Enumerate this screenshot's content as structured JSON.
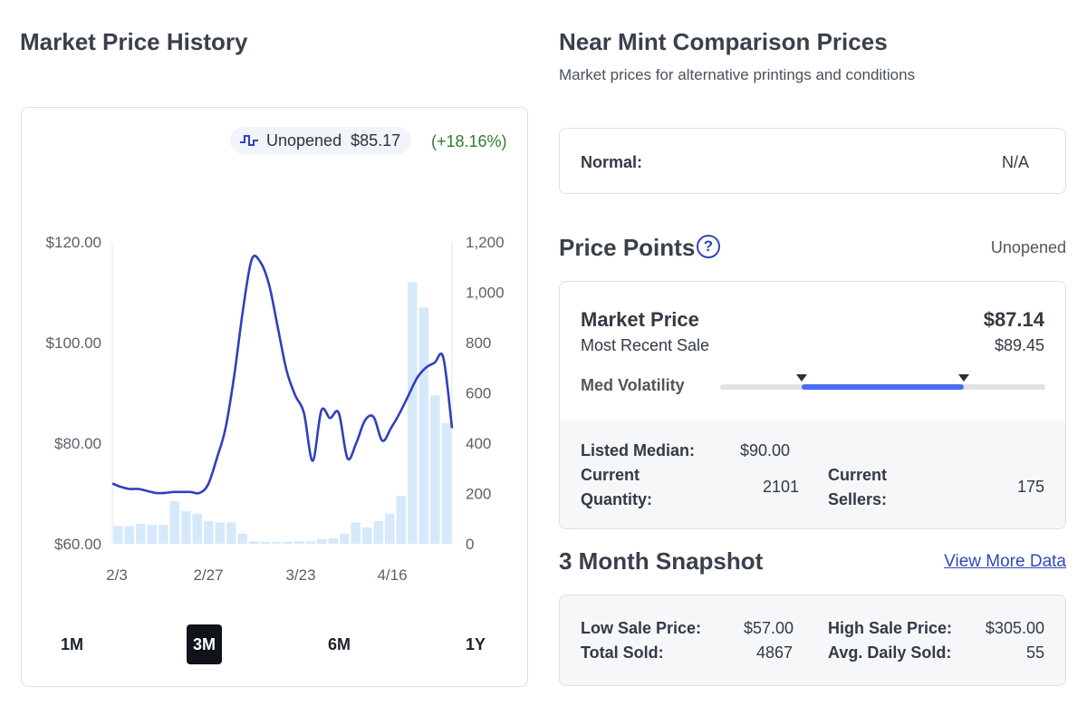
{
  "left_title": "Market Price History",
  "legend": {
    "label": "Unopened",
    "price": "$85.17",
    "change": "(+18.16%)",
    "line_color": "#2f3fbf",
    "bar_color": "#d6e9fb"
  },
  "ranges": [
    "1M",
    "3M",
    "6M",
    "1Y"
  ],
  "active_range": "3M",
  "chart_data": {
    "type": "line",
    "title": "",
    "x_tick_labels": [
      "2/3",
      "2/27",
      "3/23",
      "4/16"
    ],
    "y_left_ticks": [
      "$120.00",
      "$100.00",
      "$80.00",
      "$60.00"
    ],
    "y_left_range": [
      60,
      120
    ],
    "y_right_ticks": [
      "1,200",
      "1,000",
      "800",
      "600",
      "400",
      "200",
      "0"
    ],
    "y_right_range": [
      0,
      1200
    ],
    "grid": false,
    "series": [
      {
        "kind": "line",
        "axis": "left",
        "x_index": [
          0,
          1,
          2,
          3,
          4,
          5,
          6,
          7,
          8,
          9,
          10,
          11,
          12,
          13,
          14,
          15,
          16,
          17,
          18,
          19,
          20,
          21,
          22,
          23,
          24,
          25,
          26,
          27,
          28,
          29,
          30,
          31,
          32,
          33,
          34,
          35,
          36,
          37,
          38,
          39
        ],
        "values": [
          72.0,
          71.3,
          70.9,
          70.9,
          70.5,
          70.1,
          70.1,
          70.3,
          70.3,
          70.3,
          70.1,
          71.8,
          77.0,
          83.0,
          93.5,
          106.5,
          116.5,
          116.0,
          111.5,
          103.0,
          94.5,
          89.5,
          86.0,
          76.5,
          86.5,
          85.0,
          86.0,
          77.0,
          80.0,
          84.5,
          85.2,
          80.5,
          83.0,
          86.0,
          89.5,
          93.0,
          95.0,
          96.0,
          97.0,
          83.0
        ]
      },
      {
        "kind": "bar",
        "axis": "right",
        "x_index": [
          0,
          1,
          2,
          3,
          4,
          5,
          6,
          7,
          8,
          9,
          10,
          11,
          12,
          13,
          14,
          15,
          16,
          17,
          18,
          19,
          20,
          21,
          22,
          23,
          24,
          25,
          26,
          27,
          28,
          29
        ],
        "values": [
          70,
          70,
          80,
          75,
          75,
          170,
          130,
          120,
          90,
          85,
          85,
          40,
          10,
          8,
          8,
          8,
          10,
          10,
          18,
          22,
          40,
          85,
          65,
          90,
          120,
          190,
          1040,
          940,
          590,
          480
        ]
      }
    ]
  },
  "right_title": "Near Mint Comparison Prices",
  "subtitle": "Market prices for alternative printings and conditions",
  "normal": {
    "label": "Normal:",
    "value": "N/A"
  },
  "price_points": {
    "title": "Price Points",
    "help": "?",
    "condition": "Unopened",
    "market_price_label": "Market Price",
    "market_price": "$87.14",
    "recent_sale_label": "Most Recent Sale",
    "recent_sale": "$89.45",
    "volatility_label": "Med Volatility",
    "volatility_range": [
      0.25,
      0.75
    ],
    "listed_median_label": "Listed Median:",
    "listed_median": "$90.00",
    "current_quantity_label_1": "Current",
    "current_quantity_label_2": "Quantity:",
    "current_quantity": "2101",
    "current_sellers_label_1": "Current",
    "current_sellers_label_2": "Sellers:",
    "current_sellers": "175"
  },
  "snapshot": {
    "title": "3 Month Snapshot",
    "view_more": "View More Data",
    "low_sale_label": "Low Sale Price:",
    "low_sale": "$57.00",
    "high_sale_label": "High Sale Price:",
    "high_sale": "$305.00",
    "total_sold_label": "Total Sold:",
    "total_sold": "4867",
    "avg_daily_label": "Avg. Daily Sold:",
    "avg_daily": "55"
  }
}
